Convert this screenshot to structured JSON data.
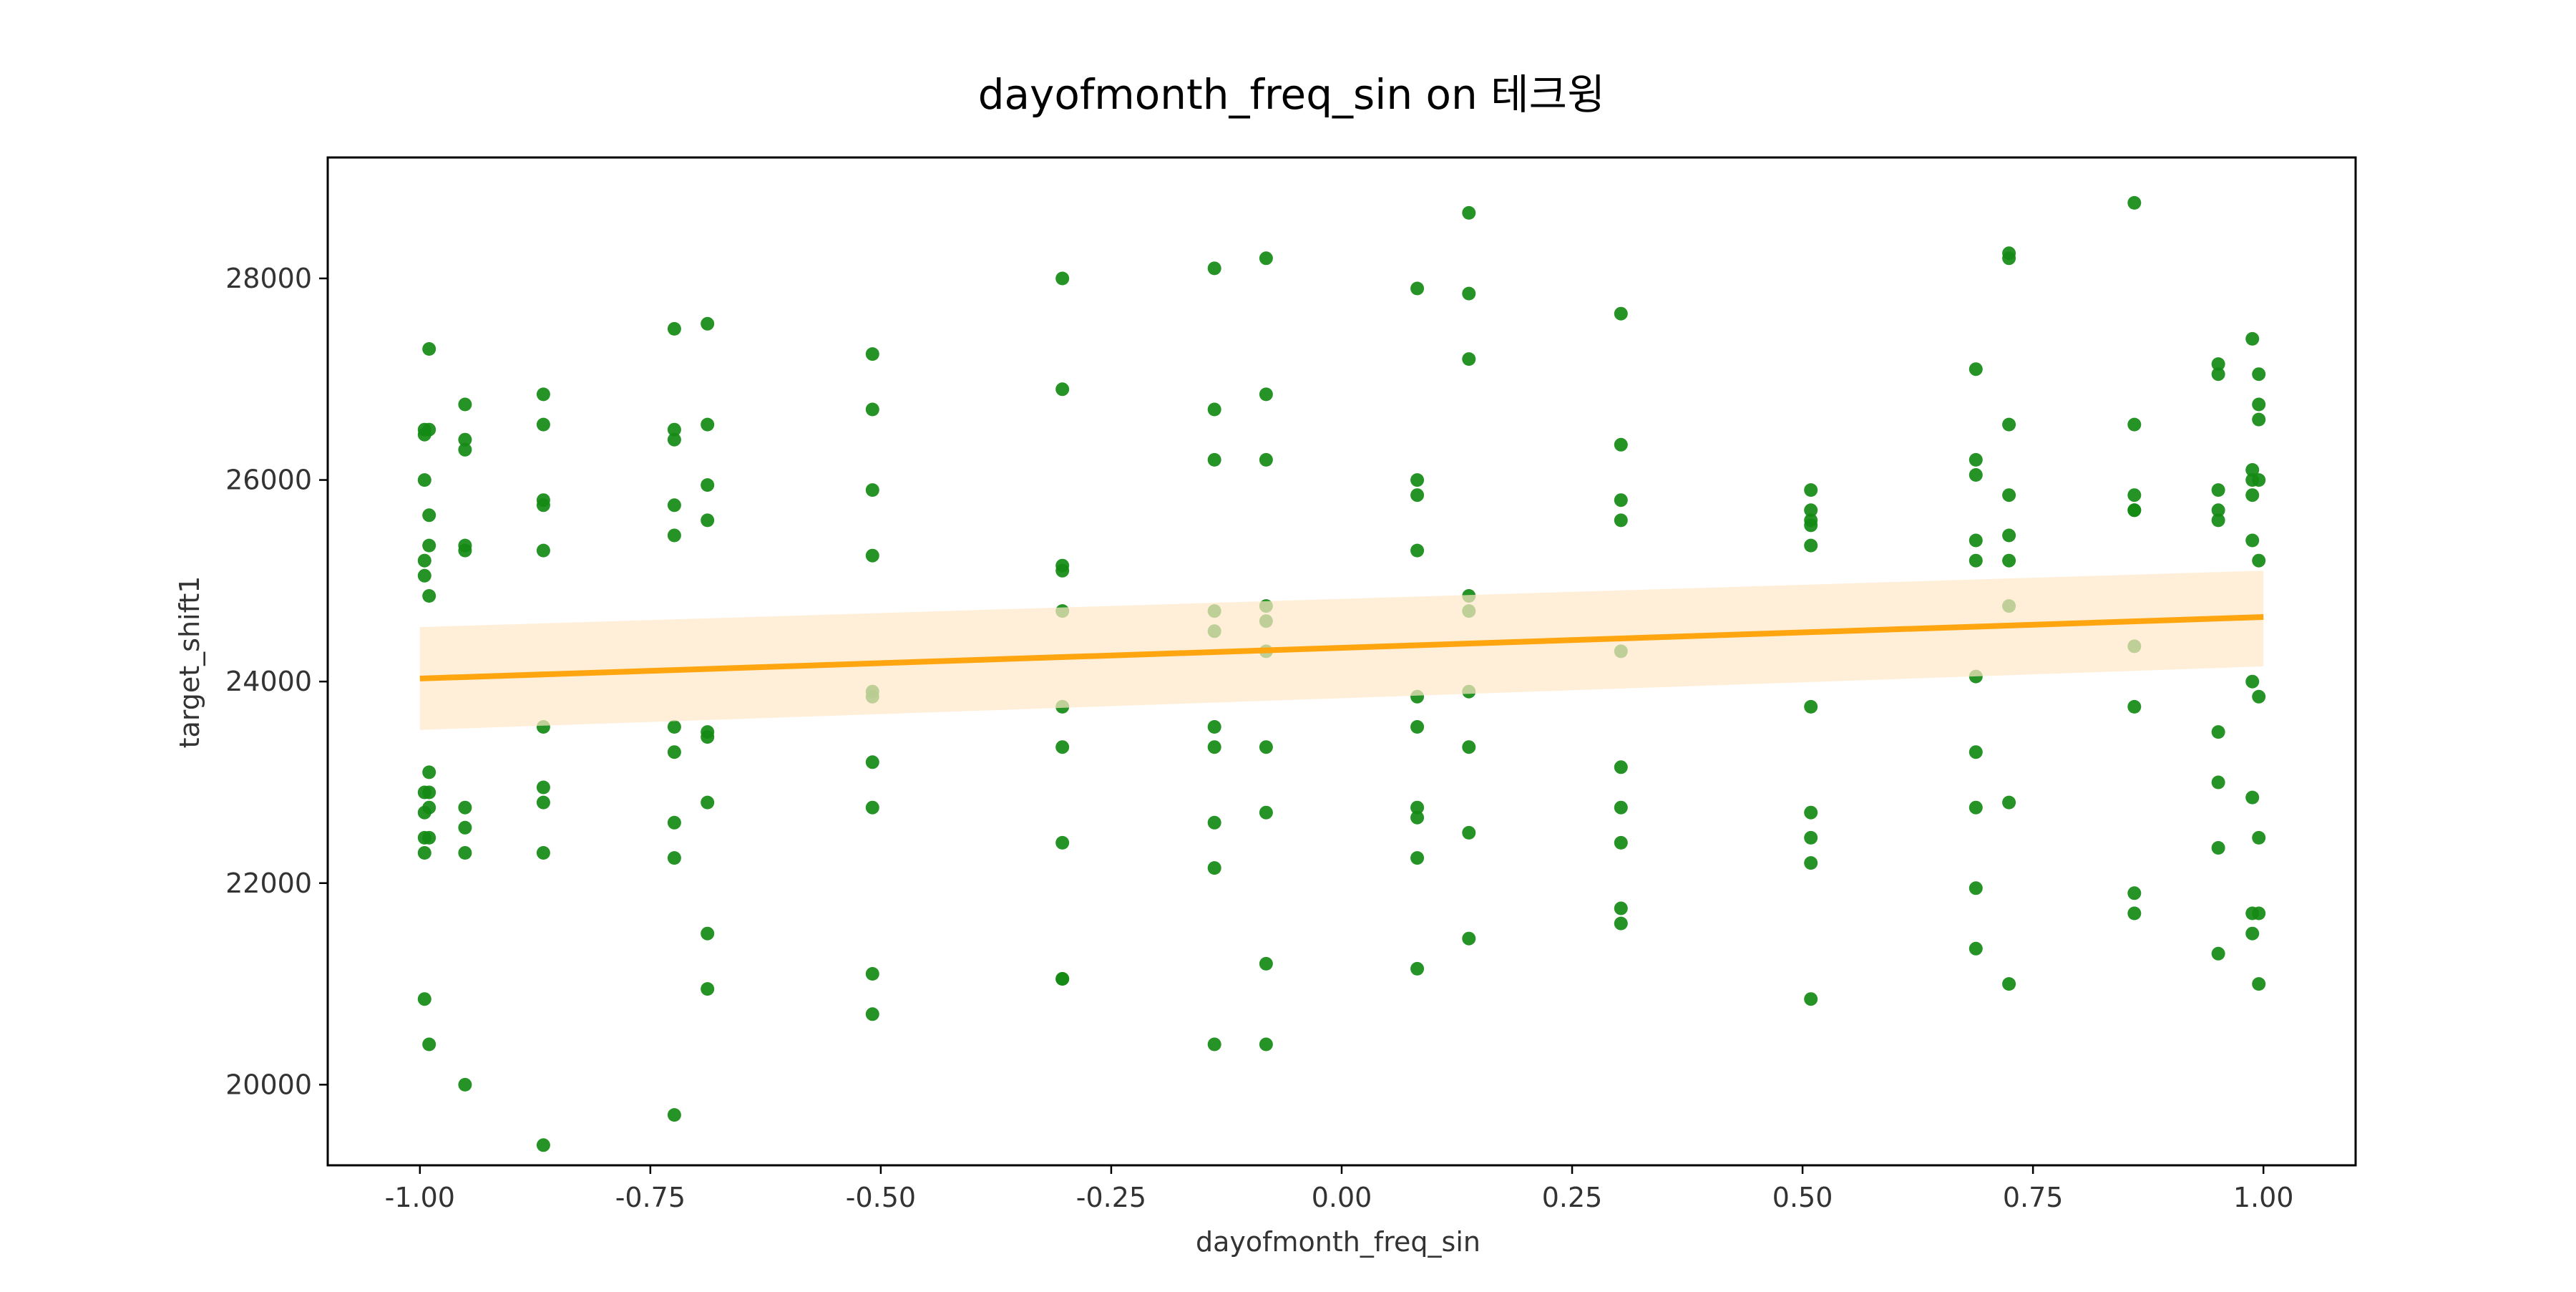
{
  "chart_data": {
    "type": "scatter",
    "title": "dayofmonth_freq_sin on 테크윙",
    "xlabel": "dayofmonth_freq_sin",
    "ylabel": "target_shift1",
    "xlim": [
      -1.1,
      1.1
    ],
    "ylim": [
      19200,
      29200
    ],
    "xticks": [
      -1.0,
      -0.75,
      -0.5,
      -0.25,
      0.0,
      0.25,
      0.5,
      0.75,
      1.0
    ],
    "xtick_labels": [
      "-1.00",
      "-0.75",
      "-0.50",
      "-0.25",
      "0.00",
      "0.25",
      "0.50",
      "0.75",
      "1.00"
    ],
    "yticks": [
      20000,
      22000,
      24000,
      26000,
      28000
    ],
    "ytick_labels": [
      "20000",
      "22000",
      "24000",
      "26000",
      "28000"
    ],
    "grid": false,
    "point_color": "#138a13",
    "line_color": "#ffa510",
    "band_color": "#ffe8c8",
    "regression": {
      "x": [
        -1.0,
        1.0
      ],
      "y": [
        24030,
        24640
      ]
    },
    "confidence_band": {
      "x": [
        -1.0,
        1.0
      ],
      "lower": [
        23520,
        24150
      ],
      "upper": [
        24540,
        25100
      ]
    },
    "points": [
      [
        -0.995,
        26500
      ],
      [
        -0.995,
        26450
      ],
      [
        -0.995,
        26000
      ],
      [
        -0.995,
        25200
      ],
      [
        -0.995,
        25050
      ],
      [
        -0.995,
        22900
      ],
      [
        -0.995,
        22700
      ],
      [
        -0.995,
        22450
      ],
      [
        -0.995,
        22300
      ],
      [
        -0.995,
        20850
      ],
      [
        -0.99,
        27300
      ],
      [
        -0.99,
        26500
      ],
      [
        -0.99,
        25650
      ],
      [
        -0.99,
        25350
      ],
      [
        -0.99,
        24850
      ],
      [
        -0.99,
        23100
      ],
      [
        -0.99,
        22900
      ],
      [
        -0.99,
        22750
      ],
      [
        -0.99,
        22450
      ],
      [
        -0.99,
        20400
      ],
      [
        -0.951,
        26750
      ],
      [
        -0.951,
        26400
      ],
      [
        -0.951,
        26300
      ],
      [
        -0.951,
        25350
      ],
      [
        -0.951,
        25300
      ],
      [
        -0.951,
        22750
      ],
      [
        -0.951,
        22550
      ],
      [
        -0.951,
        22300
      ],
      [
        -0.951,
        20000
      ],
      [
        -0.866,
        26850
      ],
      [
        -0.866,
        26550
      ],
      [
        -0.866,
        25800
      ],
      [
        -0.866,
        25750
      ],
      [
        -0.866,
        25300
      ],
      [
        -0.866,
        23550
      ],
      [
        -0.866,
        22950
      ],
      [
        -0.866,
        22800
      ],
      [
        -0.866,
        22300
      ],
      [
        -0.866,
        19400
      ],
      [
        -0.724,
        27500
      ],
      [
        -0.724,
        26500
      ],
      [
        -0.724,
        26400
      ],
      [
        -0.724,
        25750
      ],
      [
        -0.724,
        25450
      ],
      [
        -0.724,
        23550
      ],
      [
        -0.724,
        23300
      ],
      [
        -0.724,
        22600
      ],
      [
        -0.724,
        22250
      ],
      [
        -0.724,
        19700
      ],
      [
        -0.688,
        27550
      ],
      [
        -0.688,
        26550
      ],
      [
        -0.688,
        25950
      ],
      [
        -0.688,
        25600
      ],
      [
        -0.688,
        23500
      ],
      [
        -0.688,
        23450
      ],
      [
        -0.688,
        22800
      ],
      [
        -0.688,
        21500
      ],
      [
        -0.688,
        20950
      ],
      [
        -0.509,
        27250
      ],
      [
        -0.509,
        26700
      ],
      [
        -0.509,
        25900
      ],
      [
        -0.509,
        25250
      ],
      [
        -0.509,
        23900
      ],
      [
        -0.509,
        23850
      ],
      [
        -0.509,
        23200
      ],
      [
        -0.509,
        22750
      ],
      [
        -0.509,
        21100
      ],
      [
        -0.509,
        20700
      ],
      [
        -0.303,
        28000
      ],
      [
        -0.303,
        26900
      ],
      [
        -0.303,
        25150
      ],
      [
        -0.303,
        25100
      ],
      [
        -0.303,
        24700
      ],
      [
        -0.303,
        23750
      ],
      [
        -0.303,
        23350
      ],
      [
        -0.303,
        22400
      ],
      [
        -0.303,
        21050
      ],
      [
        -0.303,
        21050
      ],
      [
        -0.138,
        28100
      ],
      [
        -0.138,
        26700
      ],
      [
        -0.138,
        26200
      ],
      [
        -0.138,
        24700
      ],
      [
        -0.138,
        24500
      ],
      [
        -0.138,
        23550
      ],
      [
        -0.138,
        23350
      ],
      [
        -0.138,
        22600
      ],
      [
        -0.138,
        22150
      ],
      [
        -0.138,
        20400
      ],
      [
        -0.082,
        28200
      ],
      [
        -0.082,
        26850
      ],
      [
        -0.082,
        26200
      ],
      [
        -0.082,
        24750
      ],
      [
        -0.082,
        24600
      ],
      [
        -0.082,
        24300
      ],
      [
        -0.082,
        23350
      ],
      [
        -0.082,
        22700
      ],
      [
        -0.082,
        21200
      ],
      [
        -0.082,
        20400
      ],
      [
        0.082,
        27900
      ],
      [
        0.082,
        26000
      ],
      [
        0.082,
        25850
      ],
      [
        0.082,
        25300
      ],
      [
        0.082,
        23850
      ],
      [
        0.082,
        23550
      ],
      [
        0.082,
        22750
      ],
      [
        0.082,
        22650
      ],
      [
        0.082,
        22250
      ],
      [
        0.082,
        21150
      ],
      [
        0.138,
        28650
      ],
      [
        0.138,
        27850
      ],
      [
        0.138,
        27200
      ],
      [
        0.138,
        24850
      ],
      [
        0.138,
        24700
      ],
      [
        0.138,
        23900
      ],
      [
        0.138,
        23350
      ],
      [
        0.138,
        22500
      ],
      [
        0.138,
        21450
      ],
      [
        0.303,
        27650
      ],
      [
        0.303,
        26350
      ],
      [
        0.303,
        25800
      ],
      [
        0.303,
        25600
      ],
      [
        0.303,
        24300
      ],
      [
        0.303,
        23150
      ],
      [
        0.303,
        22750
      ],
      [
        0.303,
        22400
      ],
      [
        0.303,
        21750
      ],
      [
        0.303,
        21600
      ],
      [
        0.509,
        25900
      ],
      [
        0.509,
        25700
      ],
      [
        0.509,
        25600
      ],
      [
        0.509,
        25550
      ],
      [
        0.509,
        25350
      ],
      [
        0.509,
        23750
      ],
      [
        0.509,
        22700
      ],
      [
        0.509,
        22450
      ],
      [
        0.509,
        22200
      ],
      [
        0.509,
        20850
      ],
      [
        0.688,
        27100
      ],
      [
        0.688,
        26200
      ],
      [
        0.688,
        26050
      ],
      [
        0.688,
        25400
      ],
      [
        0.688,
        25200
      ],
      [
        0.688,
        24050
      ],
      [
        0.688,
        23300
      ],
      [
        0.688,
        22750
      ],
      [
        0.688,
        21950
      ],
      [
        0.688,
        21350
      ],
      [
        0.724,
        28250
      ],
      [
        0.724,
        28200
      ],
      [
        0.724,
        26550
      ],
      [
        0.724,
        25850
      ],
      [
        0.724,
        25450
      ],
      [
        0.724,
        25200
      ],
      [
        0.724,
        24750
      ],
      [
        0.724,
        22800
      ],
      [
        0.724,
        21000
      ],
      [
        0.86,
        28750
      ],
      [
        0.86,
        26550
      ],
      [
        0.86,
        25850
      ],
      [
        0.86,
        25700
      ],
      [
        0.86,
        25700
      ],
      [
        0.86,
        24350
      ],
      [
        0.86,
        23750
      ],
      [
        0.86,
        21900
      ],
      [
        0.86,
        21700
      ],
      [
        0.951,
        27150
      ],
      [
        0.951,
        27050
      ],
      [
        0.951,
        25900
      ],
      [
        0.951,
        25700
      ],
      [
        0.951,
        25600
      ],
      [
        0.951,
        23500
      ],
      [
        0.951,
        23000
      ],
      [
        0.951,
        22350
      ],
      [
        0.951,
        21300
      ],
      [
        0.988,
        27400
      ],
      [
        0.988,
        26100
      ],
      [
        0.988,
        26000
      ],
      [
        0.988,
        25850
      ],
      [
        0.988,
        25400
      ],
      [
        0.988,
        24000
      ],
      [
        0.988,
        22850
      ],
      [
        0.988,
        21700
      ],
      [
        0.988,
        21500
      ],
      [
        0.995,
        27050
      ],
      [
        0.995,
        26750
      ],
      [
        0.995,
        26600
      ],
      [
        0.995,
        26000
      ],
      [
        0.995,
        25200
      ],
      [
        0.995,
        23850
      ],
      [
        0.995,
        22450
      ],
      [
        0.995,
        21700
      ],
      [
        0.995,
        21000
      ]
    ]
  }
}
